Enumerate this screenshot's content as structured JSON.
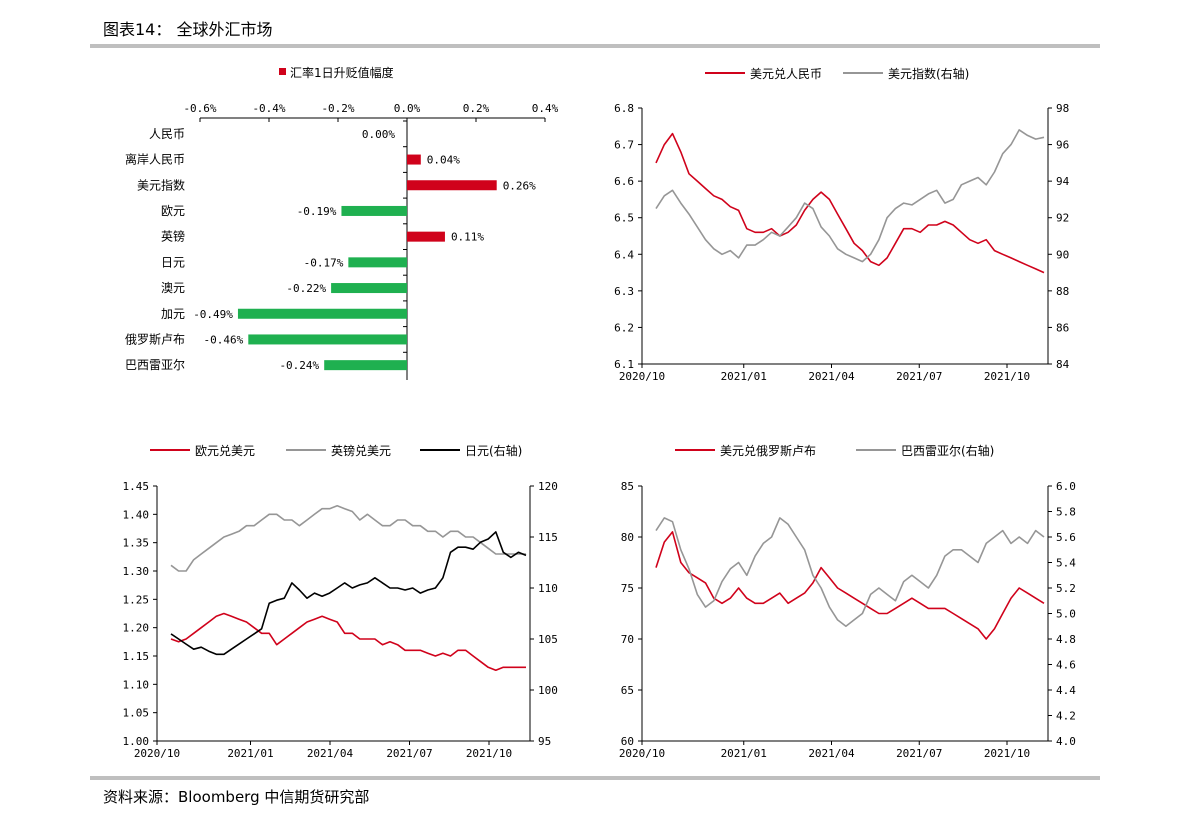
{
  "header": {
    "title": "图表14： 全球外汇市场"
  },
  "footer": {
    "source": "资料来源：Bloomberg 中信期货研究部"
  },
  "colors": {
    "red": "#d0021b",
    "green": "#1fb050",
    "gray": "#969696",
    "black": "#000000",
    "rule": "#bfbfbf"
  },
  "chart_data": [
    {
      "type": "bar",
      "orientation": "horizontal",
      "legend": [
        "汇率1日升贬值幅度"
      ],
      "categories": [
        "人民币",
        "离岸人民币",
        "美元指数",
        "欧元",
        "英镑",
        "日元",
        "澳元",
        "加元",
        "俄罗斯卢布",
        "巴西雷亚尔"
      ],
      "values": [
        0.0,
        0.04,
        0.26,
        -0.19,
        0.11,
        -0.17,
        -0.22,
        -0.49,
        -0.46,
        -0.24
      ],
      "value_labels": [
        "0.00%",
        "0.04%",
        "0.26%",
        "-0.19%",
        "0.11%",
        "-0.17%",
        "-0.22%",
        "-0.49%",
        "-0.46%",
        "-0.24%"
      ],
      "xlim": [
        -0.6,
        0.4
      ],
      "xticks": [
        "-0.6%",
        "-0.4%",
        "-0.2%",
        "0.0%",
        "0.2%",
        "0.4%"
      ],
      "positive_color": "#d0021b",
      "negative_color": "#1fb050"
    },
    {
      "type": "line",
      "legend": [
        "美元兑人民币",
        "美元指数(右轴)"
      ],
      "xticks": [
        "2020/10",
        "2021/01",
        "2021/04",
        "2021/07",
        "2021/10"
      ],
      "ylim": [
        6.1,
        6.8
      ],
      "yticks": [
        "6.1",
        "6.2",
        "6.3",
        "6.4",
        "6.5",
        "6.6",
        "6.7",
        "6.8"
      ],
      "y2lim": [
        84,
        98
      ],
      "y2ticks": [
        "84",
        "86",
        "88",
        "90",
        "92",
        "94",
        "96",
        "98"
      ],
      "series": [
        {
          "name": "美元兑人民币",
          "axis": "left",
          "color": "#d0021b",
          "values": [
            6.65,
            6.7,
            6.73,
            6.68,
            6.62,
            6.6,
            6.58,
            6.56,
            6.55,
            6.53,
            6.52,
            6.47,
            6.46,
            6.46,
            6.47,
            6.45,
            6.46,
            6.48,
            6.52,
            6.55,
            6.57,
            6.55,
            6.51,
            6.47,
            6.43,
            6.41,
            6.38,
            6.37,
            6.39,
            6.43,
            6.47,
            6.47,
            6.46,
            6.48,
            6.48,
            6.49,
            6.48,
            6.46,
            6.44,
            6.43,
            6.44,
            6.41,
            6.4,
            6.39,
            6.38,
            6.37,
            6.36,
            6.35
          ]
        },
        {
          "name": "美元指数(右轴)",
          "axis": "right",
          "color": "#969696",
          "values": [
            92.5,
            93.2,
            93.5,
            92.8,
            92.2,
            91.5,
            90.8,
            90.3,
            90.0,
            90.2,
            89.8,
            90.5,
            90.5,
            90.8,
            91.2,
            91.0,
            91.5,
            92.0,
            92.8,
            92.5,
            91.5,
            91.0,
            90.3,
            90.0,
            89.8,
            89.6,
            90.0,
            90.8,
            92.0,
            92.5,
            92.8,
            92.7,
            93.0,
            93.3,
            93.5,
            92.8,
            93.0,
            93.8,
            94.0,
            94.2,
            93.8,
            94.5,
            95.5,
            96.0,
            96.8,
            96.5,
            96.3,
            96.4
          ]
        }
      ]
    },
    {
      "type": "line",
      "legend": [
        "欧元兑美元",
        "英镑兑美元",
        "日元(右轴)"
      ],
      "xticks": [
        "2020/10",
        "2021/01",
        "2021/04",
        "2021/07",
        "2021/10"
      ],
      "ylim": [
        1.0,
        1.45
      ],
      "yticks": [
        "1.00",
        "1.05",
        "1.10",
        "1.15",
        "1.20",
        "1.25",
        "1.30",
        "1.35",
        "1.40",
        "1.45"
      ],
      "y2lim": [
        95,
        120
      ],
      "y2ticks": [
        "95",
        "100",
        "105",
        "110",
        "115",
        "120"
      ],
      "series": [
        {
          "name": "欧元兑美元",
          "axis": "left",
          "color": "#d0021b",
          "values": [
            1.18,
            1.175,
            1.18,
            1.19,
            1.2,
            1.21,
            1.22,
            1.225,
            1.22,
            1.215,
            1.21,
            1.2,
            1.19,
            1.19,
            1.17,
            1.18,
            1.19,
            1.2,
            1.21,
            1.215,
            1.22,
            1.215,
            1.21,
            1.19,
            1.19,
            1.18,
            1.18,
            1.18,
            1.17,
            1.175,
            1.17,
            1.16,
            1.16,
            1.16,
            1.155,
            1.15,
            1.155,
            1.15,
            1.16,
            1.16,
            1.15,
            1.14,
            1.13,
            1.125,
            1.13,
            1.13,
            1.13,
            1.13
          ]
        },
        {
          "name": "英镑兑美元",
          "axis": "left",
          "color": "#969696",
          "values": [
            1.31,
            1.3,
            1.3,
            1.32,
            1.33,
            1.34,
            1.35,
            1.36,
            1.365,
            1.37,
            1.38,
            1.38,
            1.39,
            1.4,
            1.4,
            1.39,
            1.39,
            1.38,
            1.39,
            1.4,
            1.41,
            1.41,
            1.415,
            1.41,
            1.405,
            1.39,
            1.4,
            1.39,
            1.38,
            1.38,
            1.39,
            1.39,
            1.38,
            1.38,
            1.37,
            1.37,
            1.36,
            1.37,
            1.37,
            1.36,
            1.36,
            1.35,
            1.34,
            1.33,
            1.33,
            1.33,
            1.33,
            1.33
          ]
        },
        {
          "name": "日元(右轴)",
          "axis": "right",
          "color": "#000000",
          "values": [
            105.5,
            105.0,
            104.5,
            104.0,
            104.2,
            103.8,
            103.5,
            103.5,
            104.0,
            104.5,
            105.0,
            105.5,
            106.0,
            108.5,
            108.8,
            109.0,
            110.5,
            109.8,
            109.0,
            109.5,
            109.2,
            109.5,
            110.0,
            110.5,
            110.0,
            110.3,
            110.5,
            111.0,
            110.5,
            110.0,
            110.0,
            109.8,
            110.0,
            109.5,
            109.8,
            110.0,
            111.0,
            113.5,
            114.0,
            114.0,
            113.8,
            114.5,
            114.8,
            115.5,
            113.5,
            113.0,
            113.5,
            113.2
          ]
        }
      ]
    },
    {
      "type": "line",
      "legend": [
        "美元兑俄罗斯卢布",
        "巴西雷亚尔(右轴)"
      ],
      "xticks": [
        "2020/10",
        "2021/01",
        "2021/04",
        "2021/07",
        "2021/10"
      ],
      "ylim": [
        60,
        85
      ],
      "yticks": [
        "60",
        "65",
        "70",
        "75",
        "80",
        "85"
      ],
      "y2lim": [
        4.0,
        6.0
      ],
      "y2ticks": [
        "4.0",
        "4.2",
        "4.4",
        "4.6",
        "4.8",
        "5.0",
        "5.2",
        "5.4",
        "5.6",
        "5.8",
        "6.0"
      ],
      "series": [
        {
          "name": "美元兑俄罗斯卢布",
          "axis": "left",
          "color": "#d0021b",
          "values": [
            77.0,
            79.5,
            80.5,
            77.5,
            76.5,
            76.0,
            75.5,
            74.0,
            73.5,
            74.0,
            75.0,
            74.0,
            73.5,
            73.5,
            74.0,
            74.5,
            73.5,
            74.0,
            74.5,
            75.5,
            77.0,
            76.0,
            75.0,
            74.5,
            74.0,
            73.5,
            73.0,
            72.5,
            72.5,
            73.0,
            73.5,
            74.0,
            73.5,
            73.0,
            73.0,
            73.0,
            72.5,
            72.0,
            71.5,
            71.0,
            70.0,
            71.0,
            72.5,
            74.0,
            75.0,
            74.5,
            74.0,
            73.5
          ]
        },
        {
          "name": "巴西雷亚尔(右轴)",
          "axis": "right",
          "color": "#969696",
          "values": [
            5.65,
            5.75,
            5.72,
            5.5,
            5.35,
            5.15,
            5.05,
            5.1,
            5.25,
            5.35,
            5.4,
            5.3,
            5.45,
            5.55,
            5.6,
            5.75,
            5.7,
            5.6,
            5.5,
            5.3,
            5.2,
            5.05,
            4.95,
            4.9,
            4.95,
            5.0,
            5.15,
            5.2,
            5.15,
            5.1,
            5.25,
            5.3,
            5.25,
            5.2,
            5.3,
            5.45,
            5.5,
            5.5,
            5.45,
            5.4,
            5.55,
            5.6,
            5.65,
            5.55,
            5.6,
            5.55,
            5.65,
            5.6
          ]
        }
      ]
    }
  ]
}
